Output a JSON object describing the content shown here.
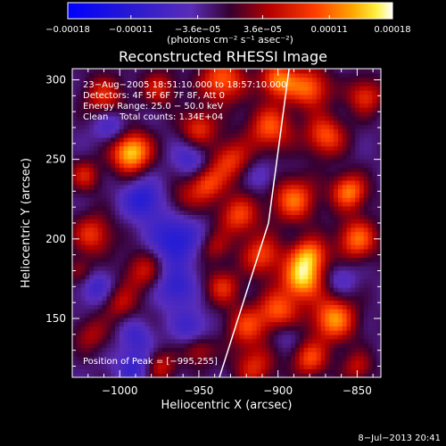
{
  "chart_data": {
    "type": "heatmap",
    "title": "Reconstructed RHESSI Image",
    "xlabel": "Heliocentric X (arcsec)",
    "ylabel": "Heliocentric Y (arcsec)",
    "xlim": [
      -1030,
      -835
    ],
    "ylim": [
      113,
      307
    ],
    "x_ticks": [
      -1000,
      -950,
      -900,
      -850
    ],
    "x_tick_labels": [
      "−1000",
      "−950",
      "−900",
      "−850"
    ],
    "y_ticks": [
      150,
      200,
      250,
      300
    ],
    "y_tick_labels": [
      "150",
      "200",
      "250",
      "300"
    ],
    "colorbar": {
      "range": [
        -0.00018,
        0.00018
      ],
      "ticks": [
        -0.00018,
        -0.00011,
        -3.6e-05,
        3.6e-05,
        0.00011,
        0.00018
      ],
      "tick_labels": [
        "−0.00018",
        "−0.00011",
        "−3.6e−05",
        "3.6e−05",
        "0.00011",
        "0.00018"
      ],
      "units": "(photons cm⁻² s⁻¹ asec⁻²)",
      "colormap": "blue-purple-red-orange-yellow-white"
    },
    "annotations": [
      "23−Aug−2005 18:51:10.000 to 18:57:10.000",
      "Detectors: 4F 5F 6F 7F 8F, Att 0",
      "Energy Range: 25.0 − 50.0 keV",
      "Clean    Total counts: 1.34E+04"
    ],
    "peak_label": "Position of Peak = [−995,255]",
    "limb_line": {
      "x": [
        -937,
        -906,
        -893
      ],
      "y": [
        113,
        210,
        307
      ]
    },
    "blobs": [
      {
        "x": -993,
        "y": 255,
        "v": 1.0,
        "r": 9
      },
      {
        "x": -1017,
        "y": 203,
        "v": 0.55,
        "r": 9
      },
      {
        "x": -1022,
        "y": 240,
        "v": 0.45,
        "r": 7
      },
      {
        "x": -1010,
        "y": 290,
        "v": 0.5,
        "r": 9
      },
      {
        "x": -985,
        "y": 180,
        "v": 0.45,
        "r": 9
      },
      {
        "x": -1000,
        "y": 160,
        "v": 0.4,
        "r": 8
      },
      {
        "x": -975,
        "y": 295,
        "v": 0.45,
        "r": 8
      },
      {
        "x": -960,
        "y": 225,
        "v": 0.3,
        "r": 8
      },
      {
        "x": -975,
        "y": 120,
        "v": 0.5,
        "r": 7
      },
      {
        "x": -1018,
        "y": 140,
        "v": 0.35,
        "r": 8
      },
      {
        "x": -950,
        "y": 270,
        "v": 0.55,
        "r": 8
      },
      {
        "x": -935,
        "y": 300,
        "v": 0.7,
        "r": 10
      },
      {
        "x": -930,
        "y": 250,
        "v": 0.55,
        "r": 9
      },
      {
        "x": -945,
        "y": 235,
        "v": 0.6,
        "r": 8
      },
      {
        "x": -925,
        "y": 215,
        "v": 0.6,
        "r": 9
      },
      {
        "x": -905,
        "y": 270,
        "v": 0.65,
        "r": 10
      },
      {
        "x": -880,
        "y": 295,
        "v": 0.7,
        "r": 9
      },
      {
        "x": -870,
        "y": 265,
        "v": 0.65,
        "r": 9
      },
      {
        "x": -900,
        "y": 300,
        "v": 0.75,
        "r": 8
      },
      {
        "x": -890,
        "y": 225,
        "v": 0.7,
        "r": 10
      },
      {
        "x": -910,
        "y": 190,
        "v": 0.6,
        "r": 9
      },
      {
        "x": -885,
        "y": 175,
        "v": 0.9,
        "r": 9
      },
      {
        "x": -880,
        "y": 190,
        "v": 0.75,
        "r": 8
      },
      {
        "x": -865,
        "y": 150,
        "v": 0.8,
        "r": 10
      },
      {
        "x": -850,
        "y": 200,
        "v": 0.7,
        "r": 9
      },
      {
        "x": -855,
        "y": 230,
        "v": 0.75,
        "r": 8
      },
      {
        "x": -845,
        "y": 290,
        "v": 0.55,
        "r": 8
      },
      {
        "x": -900,
        "y": 155,
        "v": 0.65,
        "r": 9
      },
      {
        "x": -920,
        "y": 145,
        "v": 0.55,
        "r": 9
      },
      {
        "x": -935,
        "y": 170,
        "v": 0.5,
        "r": 8
      },
      {
        "x": -915,
        "y": 120,
        "v": 0.5,
        "r": 9
      },
      {
        "x": -880,
        "y": 125,
        "v": 0.6,
        "r": 8
      },
      {
        "x": -850,
        "y": 120,
        "v": 0.4,
        "r": 7
      },
      {
        "x": -950,
        "y": 130,
        "v": 0.4,
        "r": 7
      },
      {
        "x": -940,
        "y": 195,
        "v": 0.35,
        "r": 7
      },
      {
        "x": -1025,
        "y": 180,
        "v": 0.35,
        "r": 6
      },
      {
        "x": -990,
        "y": 120,
        "v": -0.4,
        "r": 9
      },
      {
        "x": -985,
        "y": 225,
        "v": -0.5,
        "r": 9
      },
      {
        "x": -965,
        "y": 200,
        "v": -0.55,
        "r": 11
      },
      {
        "x": -965,
        "y": 170,
        "v": -0.45,
        "r": 9
      },
      {
        "x": -1015,
        "y": 170,
        "v": -0.35,
        "r": 8
      },
      {
        "x": -1005,
        "y": 270,
        "v": -0.35,
        "r": 8
      },
      {
        "x": -955,
        "y": 250,
        "v": -0.35,
        "r": 8
      },
      {
        "x": -955,
        "y": 145,
        "v": -0.35,
        "r": 8
      },
      {
        "x": -990,
        "y": 140,
        "v": -0.3,
        "r": 7
      },
      {
        "x": -860,
        "y": 175,
        "v": -0.25,
        "r": 7
      },
      {
        "x": -910,
        "y": 240,
        "v": -0.25,
        "r": 7
      },
      {
        "x": -895,
        "y": 140,
        "v": -0.2,
        "r": 7
      }
    ]
  },
  "footer": {
    "date": "8−Jul−2013 20:41"
  }
}
